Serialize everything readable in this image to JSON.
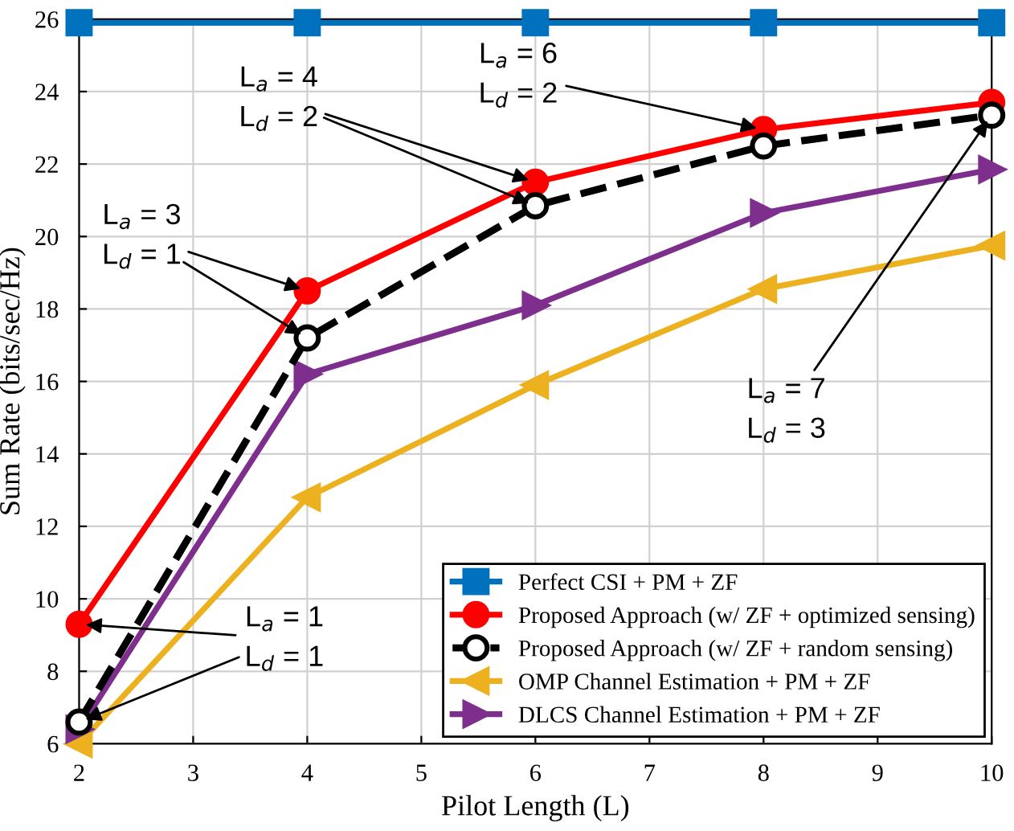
{
  "chart_data": {
    "type": "line",
    "xlabel": "Pilot Length (L)",
    "ylabel": "Sum Rate (bits/sec/Hz)",
    "x": [
      2,
      4,
      6,
      8,
      10
    ],
    "xlim": [
      2,
      10
    ],
    "xticks": [
      2,
      3,
      4,
      5,
      6,
      7,
      8,
      9,
      10
    ],
    "ylim": [
      6,
      26
    ],
    "yticks": [
      6,
      8,
      10,
      12,
      14,
      16,
      18,
      20,
      22,
      24,
      26
    ],
    "grid": true,
    "legend": "bottom right",
    "series": [
      {
        "name": "Perfect CSI + PM + ZF",
        "color": "#0072bd",
        "marker": "square",
        "line_style": "solid",
        "values": [
          25.9,
          25.9,
          25.9,
          25.9,
          25.9
        ]
      },
      {
        "name": "Proposed Approach (w/ ZF + optimized sensing)",
        "color": "#ff0000",
        "marker": "circle",
        "line_style": "solid",
        "values": [
          9.3,
          18.5,
          21.5,
          22.95,
          23.7
        ]
      },
      {
        "name": "Proposed Approach (w/ ZF + random sensing)",
        "color": "#000000",
        "marker": "circle",
        "line_style": "dashed",
        "values": [
          6.6,
          17.2,
          20.85,
          22.5,
          23.35
        ]
      },
      {
        "name": "OMP Channel Estimation + PM + ZF",
        "color": "#edb120",
        "marker": "triangle_left",
        "line_style": "solid",
        "values": [
          6.0,
          12.8,
          15.9,
          18.55,
          19.75
        ]
      },
      {
        "name": "DLCS Channel Estimation + PM + ZF",
        "color": "#7e2f8e",
        "marker": "triangle_right",
        "line_style": "solid",
        "values": [
          6.4,
          16.2,
          18.1,
          20.65,
          21.85
        ]
      }
    ],
    "annotations": [
      {
        "text": "L$_{a}$ = 1\nL$_{d}$ = 1",
        "x": 2,
        "y": 9.3
      },
      {
        "text": "L$_{a}$ = 3\nL$_{d}$ = 1",
        "x": 4,
        "y": 18.5
      },
      {
        "text": "L$_{a}$ = 4\nL$_{d}$ = 2",
        "x": 6,
        "y": 21.5
      },
      {
        "text": "L$_{a}$ = 6\nL$_{d}$ = 2",
        "x": 8,
        "y": 22.95
      },
      {
        "text": "L$_{a}$ = 7\nL$_{d}$ = 3",
        "x": 10,
        "y": 23.35
      }
    ]
  }
}
